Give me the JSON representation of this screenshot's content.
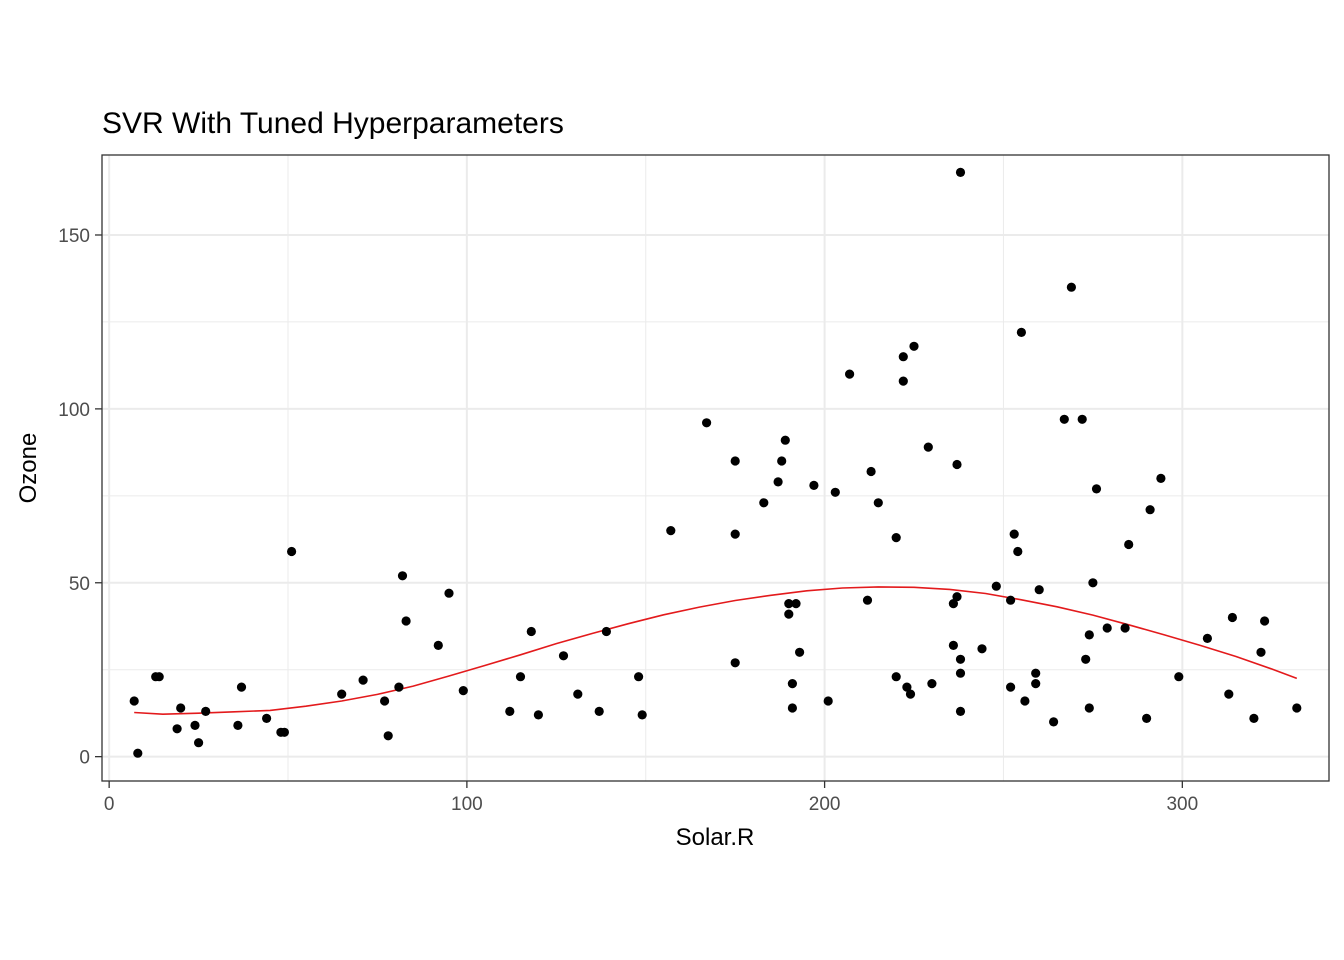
{
  "chart_data": {
    "type": "scatter",
    "title": "SVR With Tuned Hyperparameters",
    "xlabel": "Solar.R",
    "ylabel": "Ozone",
    "xlim": [
      -2,
      341
    ],
    "ylim": [
      -7,
      173
    ],
    "x_ticks": [
      0,
      100,
      200,
      300
    ],
    "y_ticks": [
      0,
      50,
      100,
      150
    ],
    "x_tick_labels": [
      "0",
      "100",
      "200",
      "300"
    ],
    "y_tick_labels": [
      "0",
      "50",
      "100",
      "150"
    ],
    "grid": true,
    "colors": {
      "points": "#000000",
      "fit_line": "#e31a1c",
      "grid": "#ebebeb",
      "panel_border": "#333333"
    },
    "series": [
      {
        "kind": "points",
        "points": [
          [
            7,
            16
          ],
          [
            8,
            1
          ],
          [
            13,
            23
          ],
          [
            14,
            23
          ],
          [
            19,
            8
          ],
          [
            20,
            14
          ],
          [
            24,
            9
          ],
          [
            25,
            4
          ],
          [
            27,
            13
          ],
          [
            36,
            9
          ],
          [
            37,
            20
          ],
          [
            44,
            11
          ],
          [
            48,
            7
          ],
          [
            49,
            7
          ],
          [
            51,
            59
          ],
          [
            65,
            18
          ],
          [
            71,
            22
          ],
          [
            77,
            16
          ],
          [
            78,
            6
          ],
          [
            81,
            20
          ],
          [
            82,
            52
          ],
          [
            83,
            39
          ],
          [
            92,
            32
          ],
          [
            95,
            47
          ],
          [
            99,
            19
          ],
          [
            112,
            13
          ],
          [
            115,
            23
          ],
          [
            118,
            36
          ],
          [
            120,
            12
          ],
          [
            127,
            29
          ],
          [
            131,
            18
          ],
          [
            137,
            13
          ],
          [
            139,
            36
          ],
          [
            148,
            23
          ],
          [
            149,
            12
          ],
          [
            157,
            65
          ],
          [
            167,
            96
          ],
          [
            175,
            85
          ],
          [
            175,
            64
          ],
          [
            175,
            27
          ],
          [
            183,
            73
          ],
          [
            187,
            79
          ],
          [
            188,
            85
          ],
          [
            189,
            91
          ],
          [
            190,
            44
          ],
          [
            190,
            41
          ],
          [
            191,
            21
          ],
          [
            191,
            14
          ],
          [
            192,
            44
          ],
          [
            193,
            30
          ],
          [
            197,
            78
          ],
          [
            201,
            16
          ],
          [
            203,
            76
          ],
          [
            207,
            110
          ],
          [
            212,
            45
          ],
          [
            213,
            82
          ],
          [
            215,
            73
          ],
          [
            220,
            63
          ],
          [
            220,
            23
          ],
          [
            222,
            115
          ],
          [
            222,
            108
          ],
          [
            223,
            20
          ],
          [
            224,
            18
          ],
          [
            225,
            118
          ],
          [
            229,
            89
          ],
          [
            230,
            21
          ],
          [
            236,
            44
          ],
          [
            236,
            32
          ],
          [
            237,
            46
          ],
          [
            237,
            84
          ],
          [
            238,
            168
          ],
          [
            238,
            28
          ],
          [
            238,
            24
          ],
          [
            238,
            13
          ],
          [
            244,
            31
          ],
          [
            248,
            49
          ],
          [
            252,
            20
          ],
          [
            252,
            45
          ],
          [
            253,
            64
          ],
          [
            254,
            59
          ],
          [
            255,
            122
          ],
          [
            256,
            16
          ],
          [
            259,
            24
          ],
          [
            259,
            21
          ],
          [
            260,
            48
          ],
          [
            264,
            10
          ],
          [
            267,
            97
          ],
          [
            269,
            135
          ],
          [
            272,
            97
          ],
          [
            273,
            28
          ],
          [
            274,
            35
          ],
          [
            274,
            14
          ],
          [
            275,
            50
          ],
          [
            276,
            77
          ],
          [
            279,
            37
          ],
          [
            284,
            37
          ],
          [
            285,
            61
          ],
          [
            290,
            11
          ],
          [
            291,
            71
          ],
          [
            294,
            80
          ],
          [
            299,
            23
          ],
          [
            307,
            34
          ],
          [
            313,
            18
          ],
          [
            314,
            40
          ],
          [
            320,
            11
          ],
          [
            322,
            30
          ],
          [
            323,
            39
          ],
          [
            332,
            14
          ]
        ]
      },
      {
        "kind": "fit_line",
        "points": [
          [
            7,
            12.7
          ],
          [
            15,
            12.2
          ],
          [
            25,
            12.5
          ],
          [
            35,
            12.9
          ],
          [
            45,
            13.3
          ],
          [
            55,
            14.5
          ],
          [
            65,
            16.0
          ],
          [
            75,
            17.9
          ],
          [
            85,
            20.3
          ],
          [
            95,
            23.2
          ],
          [
            105,
            26.2
          ],
          [
            115,
            29.3
          ],
          [
            125,
            32.5
          ],
          [
            135,
            35.4
          ],
          [
            145,
            38.2
          ],
          [
            155,
            40.8
          ],
          [
            165,
            43.0
          ],
          [
            175,
            44.9
          ],
          [
            185,
            46.4
          ],
          [
            195,
            47.7
          ],
          [
            205,
            48.5
          ],
          [
            215,
            48.8
          ],
          [
            225,
            48.7
          ],
          [
            235,
            48.1
          ],
          [
            245,
            46.9
          ],
          [
            255,
            45.1
          ],
          [
            265,
            43.1
          ],
          [
            275,
            40.7
          ],
          [
            285,
            37.9
          ],
          [
            295,
            35.0
          ],
          [
            305,
            32.0
          ],
          [
            315,
            28.8
          ],
          [
            325,
            25.2
          ],
          [
            332,
            22.5
          ]
        ]
      }
    ]
  }
}
